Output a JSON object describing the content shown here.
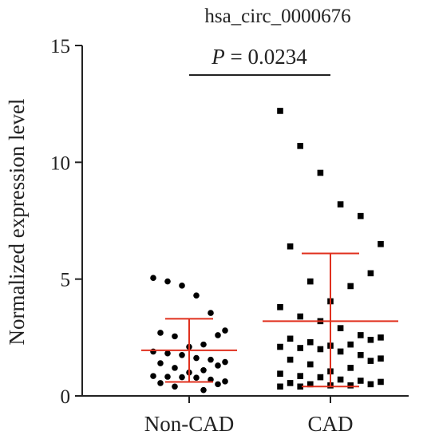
{
  "chart_data": {
    "type": "scatter",
    "title": "hsa_circ_0000676",
    "xlabel": "",
    "ylabel": "Normalized expression level",
    "ylim": [
      0,
      15
    ],
    "yticks": [
      0,
      5,
      10,
      15
    ],
    "categories": [
      "Non-CAD",
      "CAD"
    ],
    "annotation": {
      "italic": "P",
      "rest": " = 0.0234"
    },
    "summary_color": "#e0301e",
    "point_color": "#000000",
    "series": [
      {
        "category": "Non-CAD",
        "marker": "circle",
        "mean": 1.95,
        "sd_low": 0.6,
        "sd_high": 3.3,
        "values": [
          5.05,
          4.9,
          4.72,
          4.3,
          3.55,
          2.8,
          2.7,
          2.6,
          2.55,
          2.2,
          2.1,
          1.9,
          1.82,
          1.75,
          1.62,
          1.55,
          1.45,
          1.4,
          1.3,
          1.2,
          1.1,
          1.0,
          0.85,
          0.82,
          0.8,
          0.78,
          0.7,
          0.62,
          0.55,
          0.5,
          0.4,
          0.25
        ]
      },
      {
        "category": "CAD",
        "marker": "square",
        "mean": 3.2,
        "sd_low": 0.4,
        "sd_high": 6.1,
        "values": [
          12.2,
          10.7,
          9.55,
          8.2,
          7.7,
          6.5,
          6.4,
          5.25,
          4.9,
          4.7,
          4.05,
          3.8,
          3.4,
          3.2,
          2.9,
          2.6,
          2.5,
          2.45,
          2.4,
          2.3,
          2.2,
          2.15,
          2.1,
          2.05,
          2.0,
          1.9,
          1.75,
          1.6,
          1.55,
          1.5,
          1.35,
          1.2,
          1.05,
          0.95,
          0.85,
          0.8,
          0.7,
          0.65,
          0.6,
          0.55,
          0.5,
          0.5,
          0.45,
          0.45,
          0.4,
          0.4
        ]
      }
    ]
  }
}
